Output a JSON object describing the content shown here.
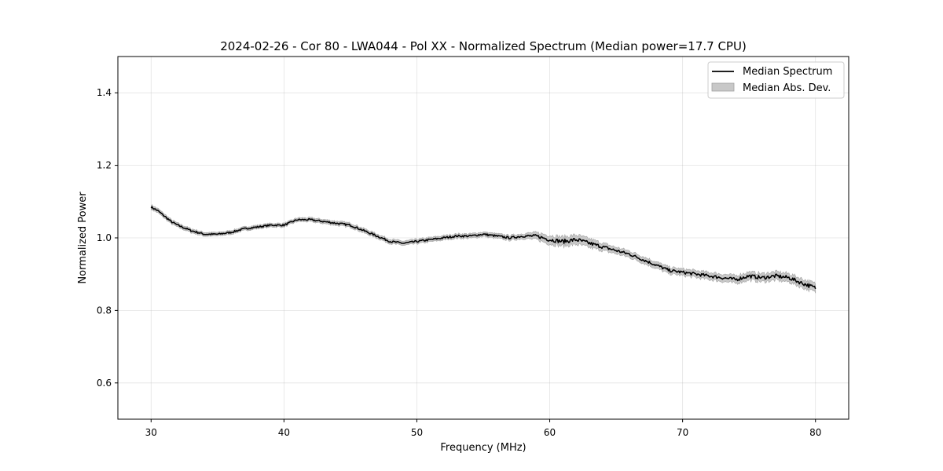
{
  "chart_data": {
    "type": "line",
    "title": "2024-02-26 - Cor 80 - LWA044 - Pol XX - Normalized Spectrum (Median power=17.7 CPU)",
    "xlabel": "Frequency (MHz)",
    "ylabel": "Normalized Power",
    "xlim": [
      27.5,
      82.5
    ],
    "ylim": [
      0.5,
      1.5
    ],
    "xticks": [
      30,
      40,
      50,
      60,
      70,
      80
    ],
    "yticks": [
      0.6,
      0.8,
      1.0,
      1.2,
      1.4
    ],
    "grid": true,
    "legend_position": "top-right",
    "colors": {
      "median": "#000000",
      "mad_fill": "#c8c8c8",
      "mad_edge": "#a0a0a0"
    },
    "series": [
      {
        "name": "Median Spectrum",
        "kind": "line",
        "x": [
          30,
          30.5,
          31,
          31.5,
          32,
          33,
          34,
          35,
          36,
          37,
          38,
          39,
          40,
          41,
          42,
          43,
          44,
          45,
          46,
          47,
          48,
          49,
          50,
          51,
          52,
          53,
          54,
          55,
          56,
          57,
          58,
          59,
          60,
          61,
          62,
          63,
          64,
          65,
          66,
          67,
          68,
          69,
          70,
          71,
          72,
          73,
          74,
          75,
          76,
          77,
          78,
          79,
          80
        ],
        "values": [
          1.085,
          1.075,
          1.06,
          1.045,
          1.035,
          1.02,
          1.01,
          1.01,
          1.015,
          1.025,
          1.03,
          1.035,
          1.035,
          1.05,
          1.05,
          1.045,
          1.04,
          1.035,
          1.02,
          1.005,
          0.99,
          0.985,
          0.99,
          0.995,
          1.0,
          1.005,
          1.005,
          1.01,
          1.005,
          1.0,
          1.005,
          1.005,
          0.995,
          0.99,
          0.995,
          0.985,
          0.975,
          0.965,
          0.955,
          0.94,
          0.925,
          0.91,
          0.905,
          0.9,
          0.895,
          0.89,
          0.885,
          0.895,
          0.89,
          0.895,
          0.89,
          0.875,
          0.862
        ]
      },
      {
        "name": "Median Abs. Dev.",
        "kind": "band",
        "x": [
          30,
          35,
          40,
          45,
          50,
          55,
          58,
          60,
          62,
          65,
          70,
          75,
          80
        ],
        "halfwidth": [
          0.006,
          0.005,
          0.005,
          0.006,
          0.006,
          0.006,
          0.007,
          0.012,
          0.013,
          0.009,
          0.009,
          0.011,
          0.012
        ]
      }
    ]
  }
}
